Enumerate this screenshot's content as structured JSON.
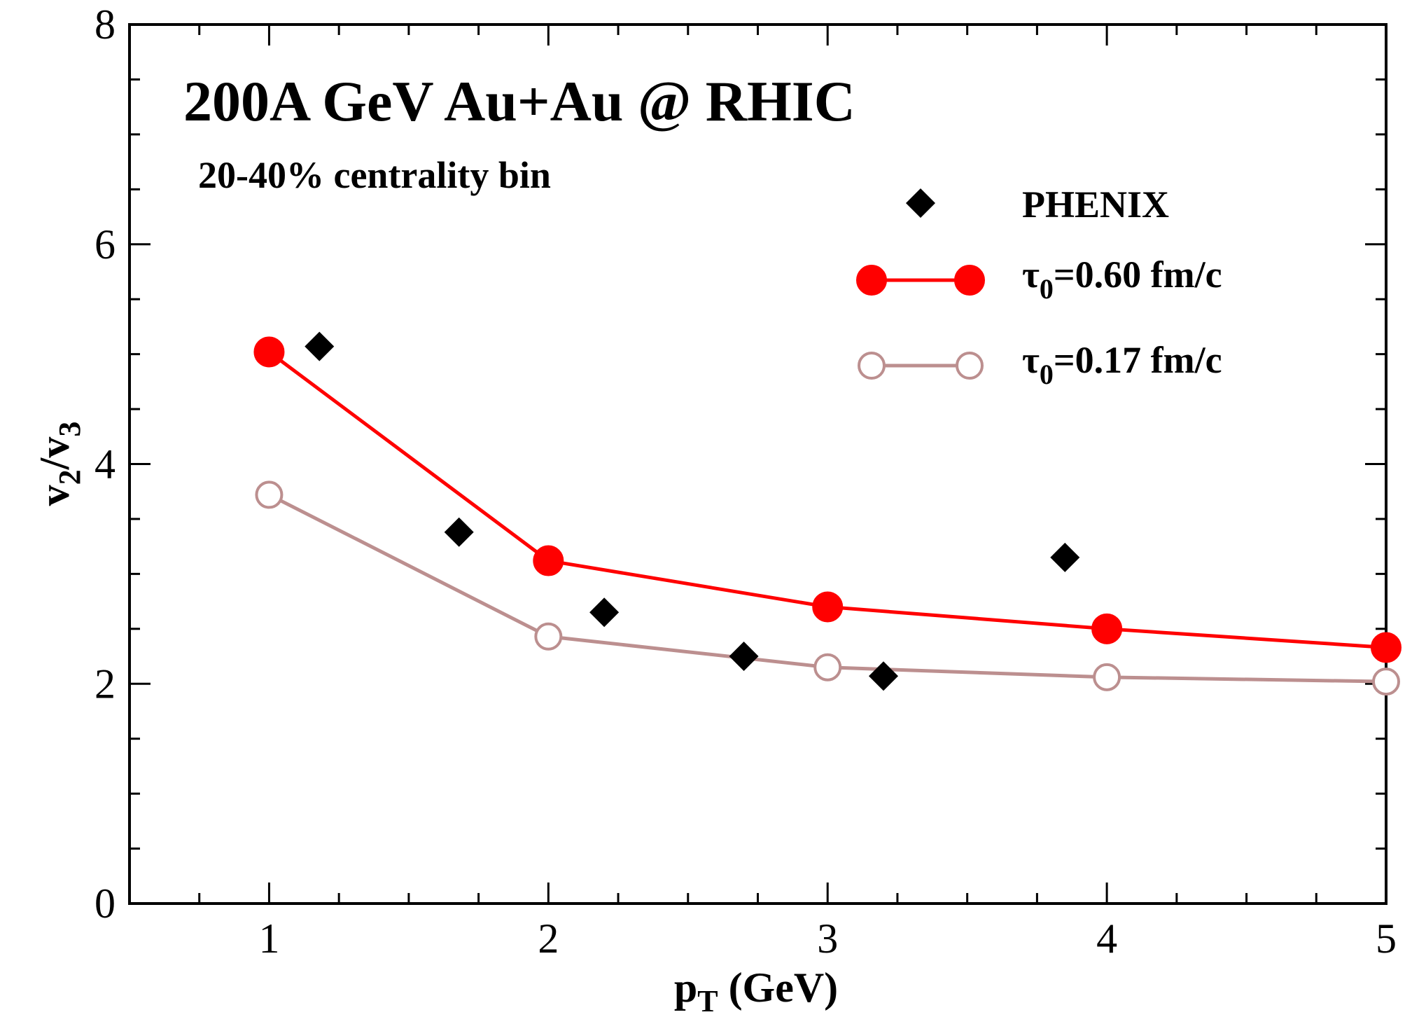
{
  "chart_data": {
    "type": "line",
    "title": "200A GeV Au+Au @ RHIC",
    "subtitle": "20-40% centrality bin",
    "xlabel": {
      "main": "p",
      "sub": "T",
      "rest": " (GeV)"
    },
    "ylabel": {
      "v1": "v",
      "s1": "2",
      "slash": "/",
      "v2": "v",
      "s2": "3"
    },
    "xlim": [
      0.5,
      5
    ],
    "ylim": [
      0,
      8
    ],
    "x_ticks": [
      "1",
      "2",
      "3",
      "4",
      "5"
    ],
    "y_ticks": [
      "0",
      "2",
      "4",
      "6",
      "8"
    ],
    "series": [
      {
        "name": "PHENIX",
        "style": "diamond",
        "color": "#000000",
        "x": [
          1.18,
          1.68,
          2.2,
          2.7,
          3.2,
          3.85
        ],
        "y": [
          5.07,
          3.38,
          2.65,
          2.25,
          2.07,
          3.15
        ]
      },
      {
        "name": "τ0=0.60 fm/c",
        "label_main": "τ",
        "label_sub": "0",
        "label_rest": "=0.60 fm/c",
        "style": "filled-circle",
        "color": "#ff0000",
        "x": [
          1,
          2,
          3,
          4,
          5
        ],
        "y": [
          5.02,
          3.12,
          2.7,
          2.5,
          2.33
        ]
      },
      {
        "name": "τ0=0.17 fm/c",
        "label_main": "τ",
        "label_sub": "0",
        "label_rest": "=0.17 fm/c",
        "style": "open-circle",
        "color": "#bc8f8f",
        "x": [
          1,
          2,
          3,
          4,
          5
        ],
        "y": [
          3.72,
          2.43,
          2.15,
          2.06,
          2.02
        ]
      }
    ]
  }
}
